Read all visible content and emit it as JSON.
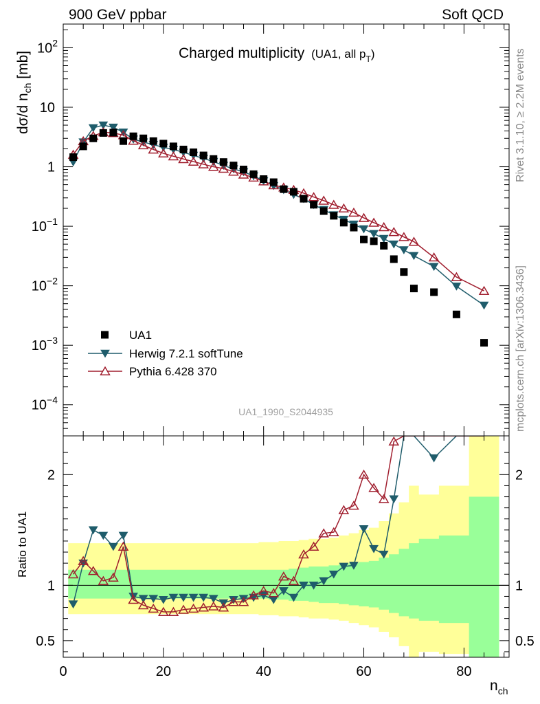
{
  "header": {
    "left": "900 GeV ppbar",
    "right": "Soft QCD"
  },
  "side_text": {
    "version": "Rivet 3.1.10, ≥ 2.2M events",
    "source": "mcplots.cern.ch [arXiv:1306.3436]"
  },
  "analysis_id": "UA1_1990_S2044935",
  "chart_data": {
    "type": "line",
    "title": "Charged multiplicity",
    "title_suffix": "(UA1, all p",
    "title_suffix_sub": "T",
    "title_suffix_end": ")",
    "xlabel": "n",
    "xlabel_sub": "ch",
    "ylabel": "dσ/d n",
    "ylabel_sub": "ch",
    "ylabel_unit": " [mb]",
    "ratio_ylabel": "Ratio to UA1",
    "xlim": [
      0,
      89
    ],
    "ylim": [
      3e-05,
      250
    ],
    "ratio_ylim": [
      0.35,
      2.35
    ],
    "x_ticks": [
      0,
      20,
      40,
      60,
      80
    ],
    "y_ticks": [
      {
        "value": 0.0001,
        "mant": "10",
        "exp": "−4"
      },
      {
        "value": 0.001,
        "mant": "10",
        "exp": "−3"
      },
      {
        "value": 0.01,
        "mant": "10",
        "exp": "−2"
      },
      {
        "value": 0.1,
        "mant": "10",
        "exp": "−1"
      },
      {
        "value": 1,
        "mant": "1",
        "exp": ""
      },
      {
        "value": 10,
        "mant": "10",
        "exp": ""
      },
      {
        "value": 100,
        "mant": "10",
        "exp": "2"
      }
    ],
    "ratio_ticks": [
      {
        "value": 0.5,
        "label": "0.5"
      },
      {
        "value": 1,
        "label": "1"
      },
      {
        "value": 2,
        "label": "2"
      }
    ],
    "legend": [
      {
        "label": "UA1",
        "marker": "square",
        "color": "#000000"
      },
      {
        "label": "Herwig 7.2.1 softTune",
        "marker": "triangle-down",
        "color": "#1f5c6b"
      },
      {
        "label": "Pythia 6.428 370",
        "marker": "triangle-up-open",
        "color": "#a01e2e"
      }
    ],
    "band_colors": {
      "inner": "#99ff99",
      "outer": "#ffff99"
    },
    "data": {
      "name": "UA1",
      "x": [
        2,
        4,
        6,
        8,
        10,
        12,
        14,
        16,
        18,
        20,
        22,
        24,
        26,
        28,
        30,
        32,
        34,
        36,
        38,
        40,
        42,
        44,
        46,
        48,
        50,
        52,
        54,
        56,
        58,
        60,
        62,
        64,
        66,
        68,
        70,
        74,
        78.5,
        84
      ],
      "y": [
        1.45,
        2.2,
        3.0,
        3.7,
        3.75,
        2.7,
        3.25,
        3.0,
        2.7,
        2.45,
        2.2,
        1.95,
        1.75,
        1.55,
        1.35,
        1.2,
        1.05,
        0.9,
        0.75,
        0.62,
        0.55,
        0.42,
        0.38,
        0.29,
        0.23,
        0.18,
        0.15,
        0.115,
        0.095,
        0.06,
        0.056,
        0.047,
        0.028,
        0.017,
        0.009,
        0.0078,
        0.0033,
        0.0011
      ],
      "band_x": [
        1,
        3,
        5,
        7,
        9,
        11,
        13,
        15,
        17,
        19,
        21,
        23,
        25,
        27,
        29,
        31,
        33,
        35,
        37,
        39,
        41,
        43,
        45,
        47,
        49,
        51,
        53,
        55,
        57,
        59,
        61,
        63,
        65,
        67,
        69,
        71,
        75,
        81,
        87
      ],
      "band_inner": [
        [
          0.88,
          1.14
        ],
        [
          0.88,
          1.14
        ],
        [
          0.88,
          1.14
        ],
        [
          0.88,
          1.14
        ],
        [
          0.88,
          1.14
        ],
        [
          0.88,
          1.14
        ],
        [
          0.88,
          1.14
        ],
        [
          0.88,
          1.14
        ],
        [
          0.88,
          1.14
        ],
        [
          0.88,
          1.14
        ],
        [
          0.88,
          1.14
        ],
        [
          0.88,
          1.14
        ],
        [
          0.88,
          1.14
        ],
        [
          0.88,
          1.14
        ],
        [
          0.88,
          1.14
        ],
        [
          0.88,
          1.14
        ],
        [
          0.88,
          1.14
        ],
        [
          0.88,
          1.14
        ],
        [
          0.88,
          1.14
        ],
        [
          0.88,
          1.14
        ],
        [
          0.87,
          1.14
        ],
        [
          0.87,
          1.14
        ],
        [
          0.86,
          1.15
        ],
        [
          0.86,
          1.16
        ],
        [
          0.85,
          1.17
        ],
        [
          0.84,
          1.17
        ],
        [
          0.84,
          1.18
        ],
        [
          0.83,
          1.19
        ],
        [
          0.82,
          1.2
        ],
        [
          0.81,
          1.21
        ],
        [
          0.8,
          1.22
        ],
        [
          0.78,
          1.25
        ],
        [
          0.75,
          1.28
        ],
        [
          0.72,
          1.33
        ],
        [
          0.7,
          1.38
        ],
        [
          0.68,
          1.42
        ],
        [
          0.66,
          1.45
        ],
        [
          0.3,
          1.8
        ]
      ],
      "band_outer": [
        [
          0.74,
          1.38
        ],
        [
          0.74,
          1.38
        ],
        [
          0.74,
          1.38
        ],
        [
          0.74,
          1.38
        ],
        [
          0.74,
          1.38
        ],
        [
          0.74,
          1.38
        ],
        [
          0.74,
          1.38
        ],
        [
          0.74,
          1.38
        ],
        [
          0.74,
          1.38
        ],
        [
          0.74,
          1.38
        ],
        [
          0.74,
          1.38
        ],
        [
          0.74,
          1.38
        ],
        [
          0.74,
          1.38
        ],
        [
          0.74,
          1.38
        ],
        [
          0.74,
          1.38
        ],
        [
          0.74,
          1.38
        ],
        [
          0.74,
          1.38
        ],
        [
          0.74,
          1.38
        ],
        [
          0.74,
          1.38
        ],
        [
          0.73,
          1.39
        ],
        [
          0.73,
          1.39
        ],
        [
          0.72,
          1.4
        ],
        [
          0.72,
          1.4
        ],
        [
          0.71,
          1.41
        ],
        [
          0.7,
          1.42
        ],
        [
          0.7,
          1.42
        ],
        [
          0.69,
          1.43
        ],
        [
          0.68,
          1.45
        ],
        [
          0.66,
          1.47
        ],
        [
          0.64,
          1.5
        ],
        [
          0.62,
          1.52
        ],
        [
          0.58,
          1.58
        ],
        [
          0.53,
          1.65
        ],
        [
          0.45,
          1.75
        ],
        [
          0.3,
          1.9
        ],
        [
          0.4,
          1.82
        ],
        [
          0.38,
          1.9
        ],
        [
          0.3,
          2.5
        ]
      ]
    },
    "series": [
      {
        "name": "Herwig 7.2.1 softTune",
        "x": [
          2,
          4,
          6,
          8,
          10,
          12,
          14,
          16,
          18,
          20,
          22,
          24,
          26,
          28,
          30,
          32,
          34,
          36,
          38,
          40,
          42,
          44,
          46,
          48,
          50,
          52,
          54,
          56,
          58,
          60,
          62,
          64,
          66,
          68,
          70,
          74,
          78.5,
          84
        ],
        "y": [
          1.2,
          2.6,
          4.5,
          5.0,
          4.6,
          3.8,
          2.9,
          2.6,
          2.35,
          2.12,
          1.95,
          1.75,
          1.55,
          1.38,
          1.22,
          1.05,
          0.92,
          0.82,
          0.7,
          0.58,
          0.48,
          0.41,
          0.34,
          0.29,
          0.23,
          0.19,
          0.155,
          0.13,
          0.108,
          0.09,
          0.075,
          0.062,
          0.05,
          0.04,
          0.032,
          0.021,
          0.0098,
          0.0047
        ],
        "ratio": [
          0.83,
          1.2,
          1.5,
          1.45,
          1.35,
          1.45,
          0.9,
          0.88,
          0.88,
          0.87,
          0.89,
          0.89,
          0.89,
          0.89,
          0.88,
          0.84,
          0.87,
          0.88,
          0.89,
          0.91,
          0.87,
          0.95,
          0.89,
          1.0,
          1.0,
          1.04,
          1.1,
          1.17,
          1.18,
          1.51,
          1.33,
          1.28,
          1.78,
          2.35,
          2.35,
          2.15,
          2.35,
          2.35
        ]
      },
      {
        "name": "Pythia 6.428 370",
        "x": [
          2,
          4,
          6,
          8,
          10,
          12,
          14,
          16,
          18,
          20,
          22,
          24,
          26,
          28,
          30,
          32,
          34,
          36,
          38,
          40,
          42,
          44,
          46,
          48,
          50,
          52,
          54,
          56,
          58,
          60,
          62,
          64,
          66,
          68,
          70,
          74,
          78.5,
          84
        ],
        "y": [
          1.6,
          2.7,
          3.3,
          3.8,
          3.7,
          3.4,
          2.75,
          2.3,
          1.95,
          1.68,
          1.5,
          1.35,
          1.22,
          1.1,
          1.0,
          0.93,
          0.83,
          0.74,
          0.66,
          0.57,
          0.49,
          0.45,
          0.41,
          0.36,
          0.31,
          0.27,
          0.23,
          0.2,
          0.17,
          0.138,
          0.115,
          0.097,
          0.08,
          0.066,
          0.055,
          0.03,
          0.014,
          0.0082
        ],
        "ratio": [
          1.1,
          1.22,
          1.13,
          1.04,
          1.07,
          1.35,
          0.87,
          0.82,
          0.79,
          0.76,
          0.76,
          0.78,
          0.79,
          0.8,
          0.81,
          0.8,
          0.85,
          0.85,
          0.91,
          0.95,
          0.93,
          1.08,
          1.04,
          1.28,
          1.35,
          1.47,
          1.48,
          1.68,
          1.72,
          2.0,
          1.88,
          1.78,
          2.3,
          2.35,
          2.35,
          2.35,
          2.35,
          2.35
        ]
      }
    ]
  }
}
